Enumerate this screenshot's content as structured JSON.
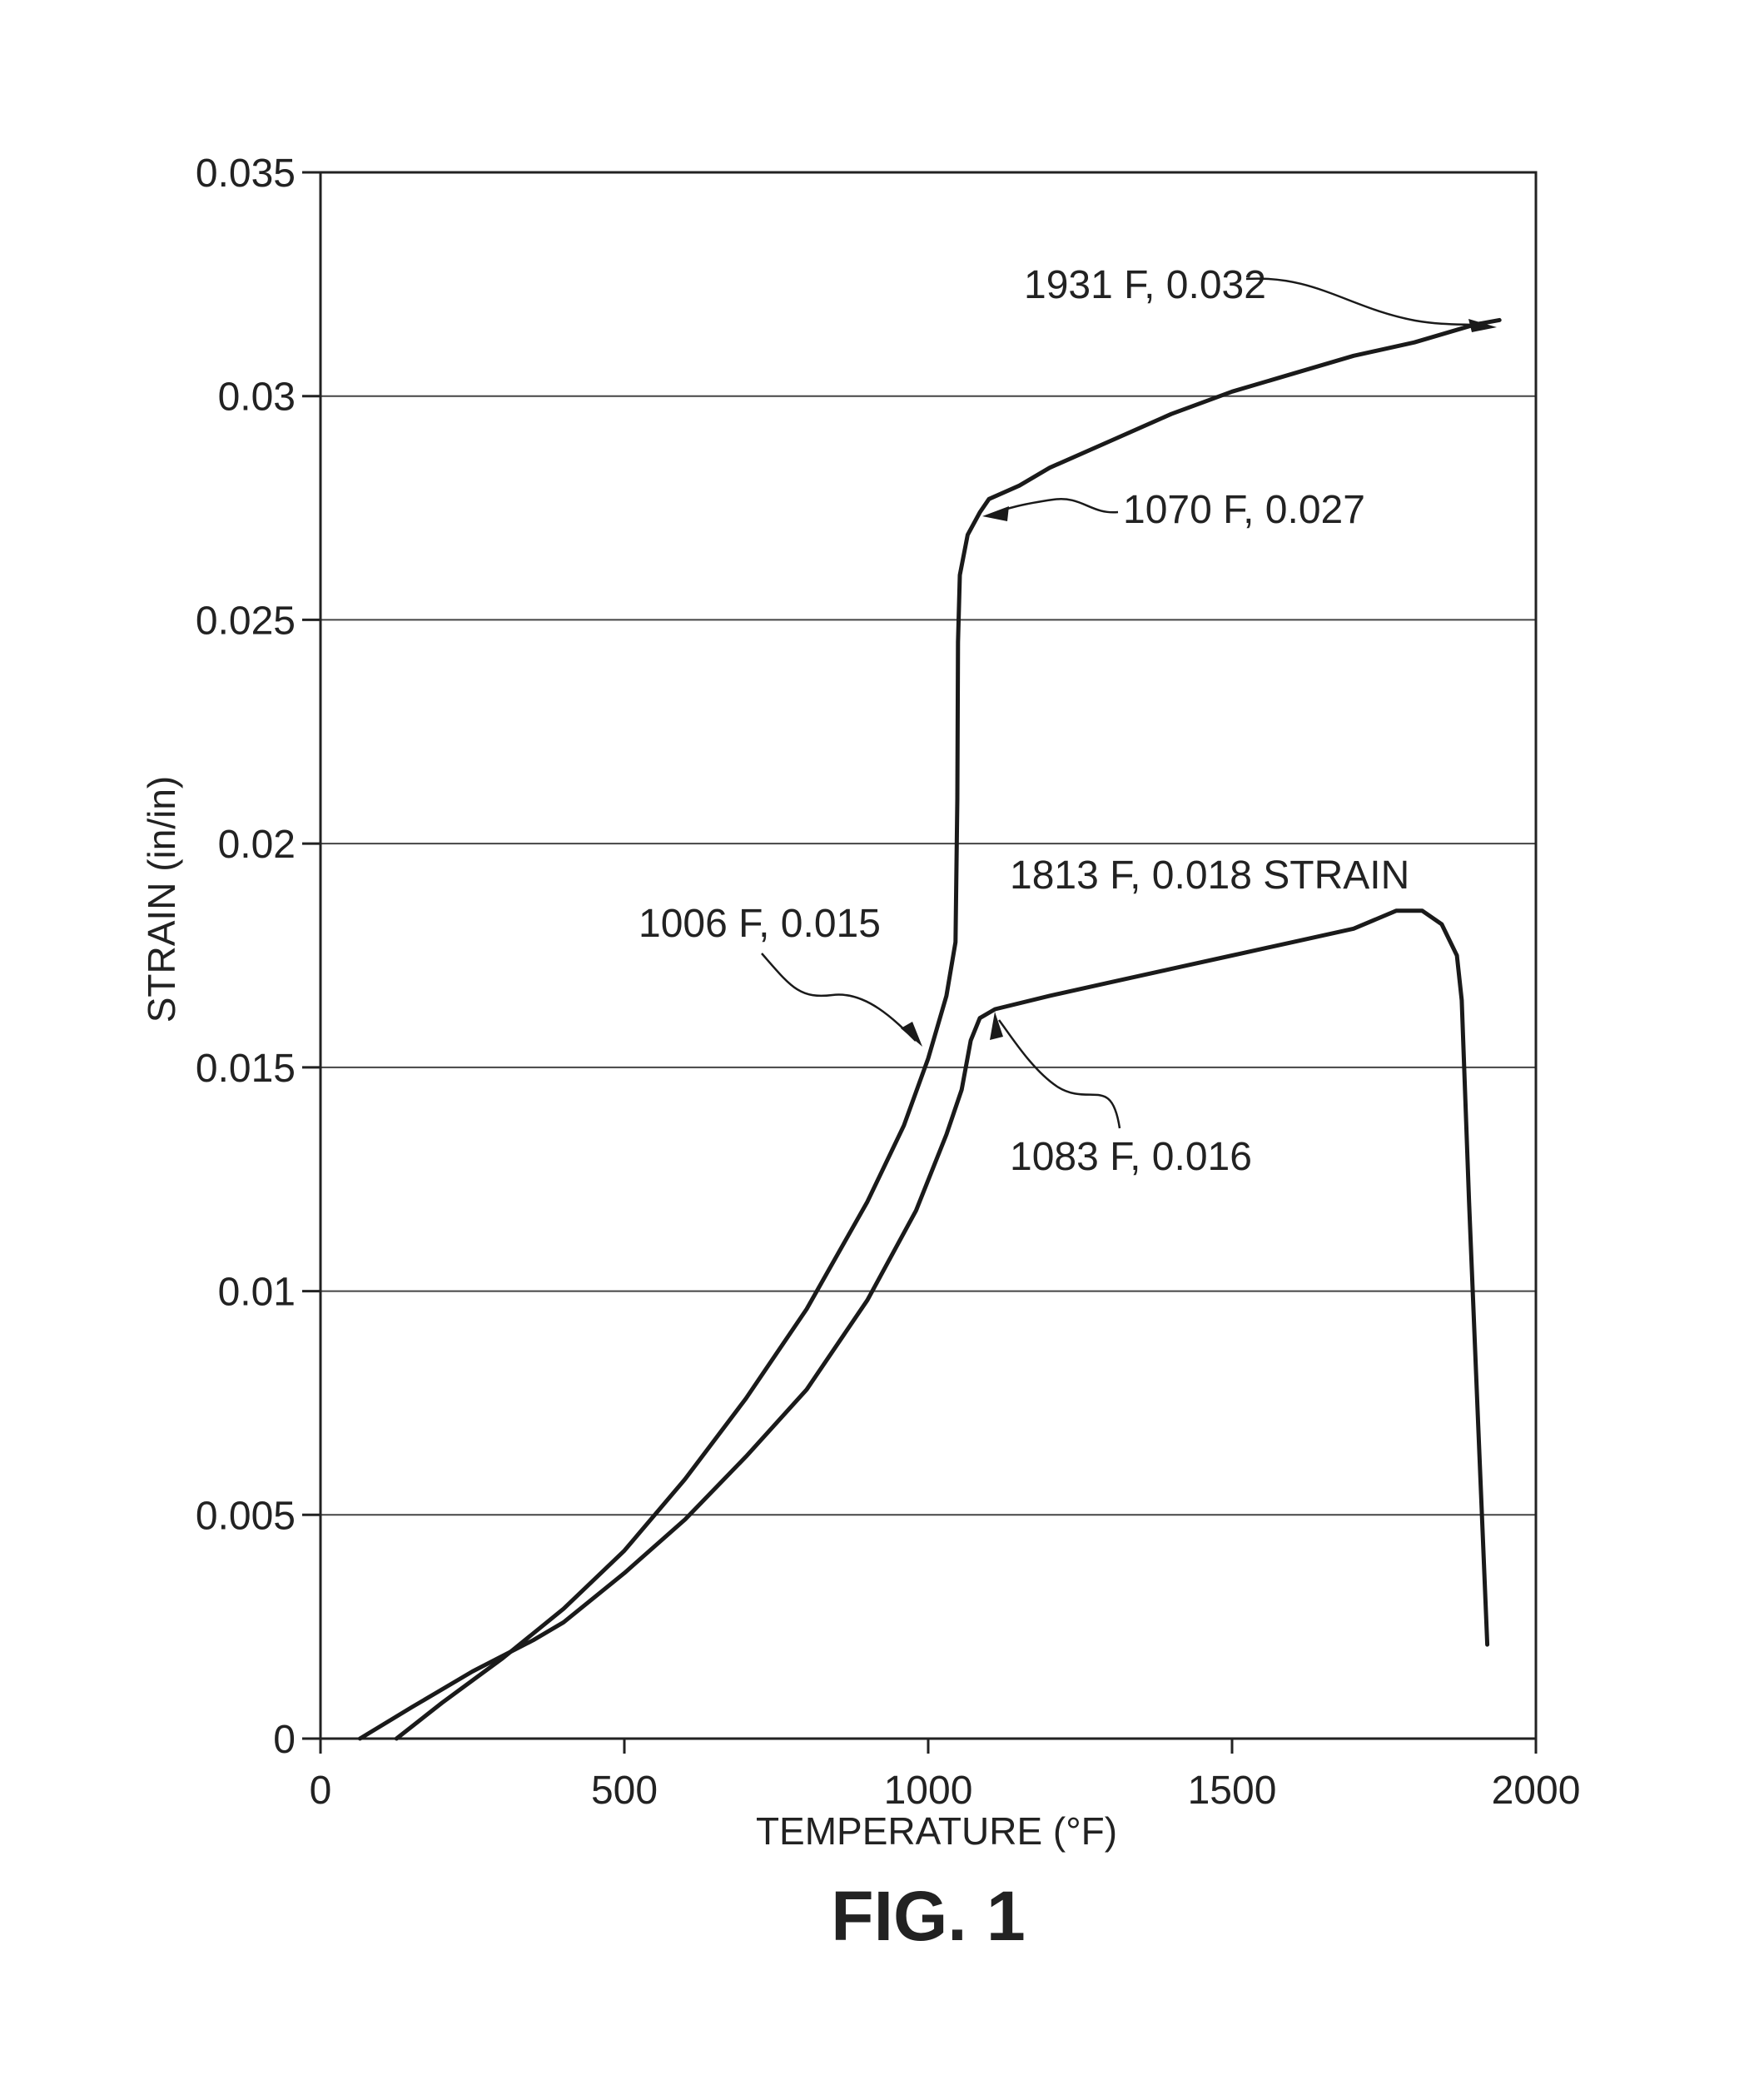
{
  "chart_data": {
    "type": "line",
    "title": "",
    "figure_label": "FIG. 1",
    "xlabel": "TEMPERATURE (°F)",
    "ylabel": "STRAIN (in/in)",
    "xlim": [
      0,
      2000
    ],
    "ylim": [
      0,
      0.035
    ],
    "x_ticks": [
      0,
      500,
      1000,
      1500,
      2000
    ],
    "x_tick_labels": [
      "0",
      "500",
      "1000",
      "1500",
      "2000"
    ],
    "y_ticks": [
      0,
      0.005,
      0.01,
      0.015,
      0.02,
      0.025,
      0.03,
      0.035
    ],
    "y_tick_labels": [
      "0",
      "0.005",
      "0.01",
      "0.015",
      "0.02",
      "0.025",
      "0.03",
      "0.035"
    ],
    "grid": "horizontal",
    "legend": "none",
    "series": [
      {
        "points": [
          [
            125,
            0
          ],
          [
            200,
            0.0008
          ],
          [
            300,
            0.0018
          ],
          [
            400,
            0.0029
          ],
          [
            500,
            0.0042
          ],
          [
            600,
            0.0058
          ],
          [
            700,
            0.0076
          ],
          [
            800,
            0.0096
          ],
          [
            900,
            0.012
          ],
          [
            960,
            0.0137
          ],
          [
            1000,
            0.0152
          ],
          [
            1030,
            0.0166
          ],
          [
            1045,
            0.0178
          ],
          [
            1048,
            0.021
          ],
          [
            1049,
            0.0245
          ],
          [
            1052,
            0.026
          ],
          [
            1065,
            0.0269
          ],
          [
            1085,
            0.0274
          ],
          [
            1100,
            0.0277
          ],
          [
            1150,
            0.028
          ],
          [
            1200,
            0.0284
          ],
          [
            1300,
            0.029
          ],
          [
            1400,
            0.0296
          ],
          [
            1500,
            0.0301
          ],
          [
            1600,
            0.0305
          ],
          [
            1700,
            0.0309
          ],
          [
            1800,
            0.0312
          ],
          [
            1900,
            0.0316
          ],
          [
            1940,
            0.0317
          ]
        ]
      },
      {
        "points": [
          [
            65,
            0
          ],
          [
            150,
            0.0007
          ],
          [
            250,
            0.0015
          ],
          [
            350,
            0.0022
          ],
          [
            400,
            0.0026
          ],
          [
            500,
            0.0037
          ],
          [
            600,
            0.0049
          ],
          [
            700,
            0.0063
          ],
          [
            800,
            0.0078
          ],
          [
            900,
            0.0098
          ],
          [
            980,
            0.0118
          ],
          [
            1030,
            0.0135
          ],
          [
            1055,
            0.0145
          ],
          [
            1070,
            0.0156
          ],
          [
            1085,
            0.0161
          ],
          [
            1110,
            0.0163
          ],
          [
            1200,
            0.0166
          ],
          [
            1300,
            0.0169
          ],
          [
            1400,
            0.0172
          ],
          [
            1500,
            0.0175
          ],
          [
            1600,
            0.0178
          ],
          [
            1700,
            0.0181
          ],
          [
            1770,
            0.0185
          ],
          [
            1813,
            0.0185
          ],
          [
            1845,
            0.0182
          ],
          [
            1870,
            0.0175
          ],
          [
            1878,
            0.0165
          ],
          [
            1890,
            0.012
          ],
          [
            1905,
            0.007
          ],
          [
            1920,
            0.0021
          ]
        ]
      }
    ],
    "annotations": [
      {
        "text": "1931 F, 0.032",
        "x": 1931,
        "y": 0.032
      },
      {
        "text": "1070 F, 0.027",
        "x": 1070,
        "y": 0.027
      },
      {
        "text": "1813 F, 0.018 STRAIN",
        "x": 1813,
        "y": 0.018
      },
      {
        "text": "1006 F, 0.015",
        "x": 1006,
        "y": 0.015
      },
      {
        "text": "1083 F, 0.016",
        "x": 1083,
        "y": 0.016
      }
    ]
  }
}
